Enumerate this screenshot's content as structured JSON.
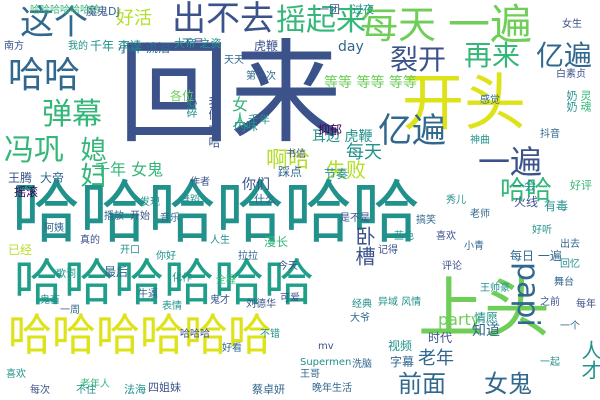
{
  "palette": {
    "background": "#ffffff",
    "dark_purple": "#440154",
    "indigo": "#3b528b",
    "blue": "#31688e",
    "teal": "#21918c",
    "teal_green": "#1f9e89",
    "green": "#35b779",
    "lime": "#6ece58",
    "yellow_green": "#b5de2b",
    "yellow": "#dde318"
  },
  "words": {
    "w01": "回来",
    "w02": "哈哈哈哈哈哈",
    "w03": "哈哈哈哈哈哈",
    "w04": "哈哈哈哈哈哈",
    "w05": "上头",
    "w06": "开头",
    "w07": "每天",
    "w08": "一遍",
    "w09": "出不去",
    "w10": "摇起来",
    "w11": "这个",
    "w12": "哈哈",
    "w13": "裂开",
    "w14": "再来",
    "w15": "亿遍",
    "w16": "亿遍",
    "w17": "弹幕",
    "w18": "冯巩",
    "w19": "papi",
    "w20": "一遍",
    "w21": "女鬼",
    "w22": "前面",
    "w23": "媳妇",
    "w24": "哈哈",
    "w25": "啊哈",
    "w26": "失败",
    "w27": "每天",
    "w28": "卧槽",
    "w29": "女人",
    "w30": "人才",
    "w31": "老年",
    "w32": "party",
    "w33": "好活",
    "w34": "等等 等等 等等",
    "w35": "千年 女鬼",
    "w36": "千年 李逵",
    "w37": "耳边 虎鞭",
    "w38": "虎鞭",
    "w39": "抑郁",
    "w40": "day",
    "w41": "你们",
    "w42": "知道",
    "w43": "情愿",
    "w44": "时代",
    "w45": "大帝",
    "w46": "王腾",
    "w47": "最后",
    "w48": "歌词",
    "w49": "视频",
    "w50": "字幕",
    "w51": "漫长",
    "w52": "一会",
    "w53": "火线",
    "w54": "节奏",
    "w55": "小碎 流泪",
    "w56": "各位",
    "w57": "内味",
    "w58": "踩点",
    "w59": "摇滚",
    "w60": "已经",
    "w61": "每日 一遍",
    "w62": "有毒",
    "w63": "一团",
    "w64": "过夜",
    "w65": "魔鬼",
    "w66": "DJ",
    "w67": "不是",
    "w68": "大帝 之资",
    "w69": "千年",
    "w70": "什么",
    "w71": "我们 哈哈",
    "w72": "好评",
    "w73": "回忆",
    "w74": "之前",
    "w75": "一个",
    "w76": "一周",
    "w77": "鬼才",
    "w78": "舞蹈",
    "w79": "音乐",
    "w80": "开始",
    "w81": "播放",
    "w82": "发现",
    "w83": "老年人",
    "w84": "蔡卓妍",
    "w85": "四姐妹",
    "w86": "不住",
    "w87": "法海",
    "w88": "晚年生活",
    "w89": "每次",
    "w90": "Supermen",
    "w91": "mv",
    "w92": "大爷",
    "w93": "王帅豪",
    "w94": "小青",
    "w95": "异域 风情",
    "w96": "舞台",
    "w97": "白素贞",
    "w98": "哈哈哈哈哈哈哈",
    "w99": "灵魂",
    "w100": "奶奶",
    "w101": "心碎",
    "w102": "作者",
    "w103": "王哥",
    "w104": "经典",
    "w105": "全程",
    "w106": "表情",
    "w107": "刘德华",
    "w108": "化作",
    "w109": "牛逼",
    "w110": "南方",
    "w111": "我的",
    "w112": "天天",
    "w113": "每年",
    "w114": "鬼畜",
    "w115": "女生",
    "w116": "感觉",
    "w117": "一起",
    "w118": "洗脑",
    "w119": "书信",
    "w120": "秀儿",
    "w121": "老师",
    "w122": "记得",
    "w123": "蓝色",
    "w124": "搞笑",
    "w125": "喜欢",
    "w126": "好听",
    "w127": "出去",
    "w128": "是不是",
    "w129": "人生",
    "w130": "拉拉",
    "w131": "今天",
    "w132": "你好",
    "w133": "阿姨",
    "w134": "真的",
    "w135": "开口",
    "w136": "第一次",
    "w137": "评论",
    "w138": "神曲",
    "w139": "抖音",
    "w140": "哈哈哈",
    "w141": "不错",
    "w142": "好看",
    "w143": "可爱",
    "w144": "喜欢"
  }
}
